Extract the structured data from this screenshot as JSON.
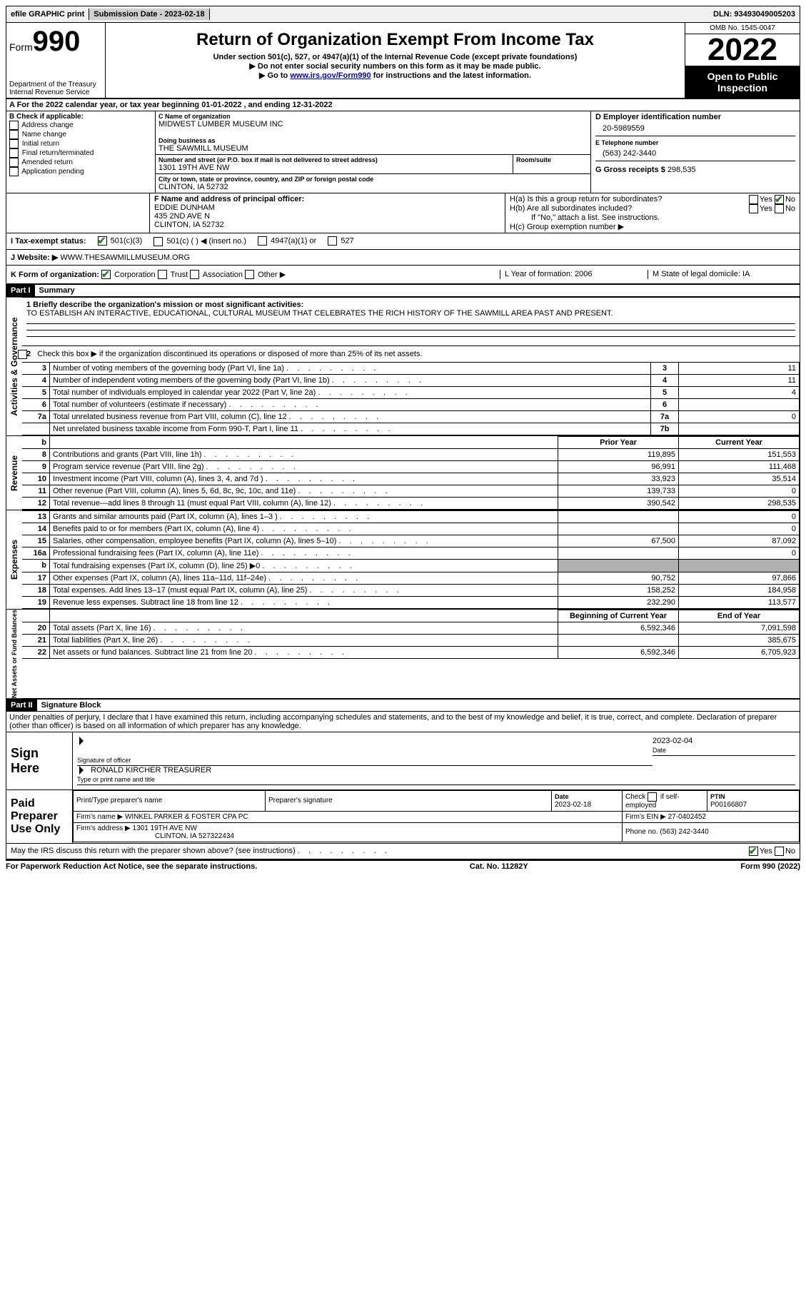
{
  "topbar": {
    "efile": "efile GRAPHIC print",
    "submission_label": "Submission Date - 2023-02-18",
    "dln_label": "DLN: 93493049005203"
  },
  "header": {
    "form_prefix": "Form",
    "form_number": "990",
    "dept": "Department of the Treasury\nInternal Revenue Service",
    "title": "Return of Organization Exempt From Income Tax",
    "subtitle": "Under section 501(c), 527, or 4947(a)(1) of the Internal Revenue Code (except private foundations)",
    "note1": "Do not enter social security numbers on this form as it may be made public.",
    "note2_prefix": "Go to ",
    "note2_link": "www.irs.gov/Form990",
    "note2_suffix": " for instructions and the latest information.",
    "omb": "OMB No. 1545-0047",
    "year": "2022",
    "open": "Open to Public Inspection"
  },
  "lineA": "A For the 2022 calendar year, or tax year beginning 01-01-2022    , and ending 12-31-2022",
  "colB": {
    "header": "B Check if applicable:",
    "items": [
      "Address change",
      "Name change",
      "Initial return",
      "Final return/terminated",
      "Amended return",
      "Application pending"
    ]
  },
  "colC": {
    "name_label": "C Name of organization",
    "name": "MIDWEST LUMBER MUSEUM INC",
    "dba_label": "Doing business as",
    "dba": "THE SAWMILL MUSEUM",
    "addr_label": "Number and street (or P.O. box if mail is not delivered to street address)",
    "room_label": "Room/suite",
    "addr": "1301 19TH AVE NW",
    "city_label": "City or town, state or province, country, and ZIP or foreign postal code",
    "city": "CLINTON, IA  52732"
  },
  "colD": {
    "ein_label": "D Employer identification number",
    "ein": "20-5989559",
    "tel_label": "E Telephone number",
    "tel": "(563) 242-3440",
    "gross_label": "G Gross receipts $",
    "gross": "298,535"
  },
  "rowF": {
    "label": "F  Name and address of principal officer:",
    "name": "EDDIE DUNHAM",
    "addr1": "435 2ND AVE N",
    "addr2": "CLINTON, IA  52732"
  },
  "rowH": {
    "ha": "H(a)  Is this a group return for subordinates?",
    "hb": "H(b)  Are all subordinates included?",
    "hb_note": "If \"No,\" attach a list. See instructions.",
    "hc": "H(c)  Group exemption number ▶",
    "yes": "Yes",
    "no": "No"
  },
  "rowI": {
    "label": "I    Tax-exempt status:",
    "o1": "501(c)(3)",
    "o2": "501(c) (  ) ◀ (insert no.)",
    "o3": "4947(a)(1) or",
    "o4": "527"
  },
  "rowJ": {
    "label": "J   Website: ▶",
    "val": "WWW.THESAWMILLMUSEUM.ORG"
  },
  "rowK": {
    "label": "K Form of organization:",
    "o1": "Corporation",
    "o2": "Trust",
    "o3": "Association",
    "o4": "Other ▶",
    "L": "L Year of formation: 2006",
    "M": "M State of legal domicile: IA"
  },
  "part1": {
    "label": "Part I",
    "title": "Summary"
  },
  "mission": {
    "q": "1    Briefly describe the organization's mission or most significant activities:",
    "text": "TO ESTABLISH AN INTERACTIVE, EDUCATIONAL, CULTURAL MUSEUM THAT CELEBRATES THE RICH HISTORY OF THE SAWMILL AREA PAST AND PRESENT."
  },
  "line2": "Check this box ▶         if the organization discontinued its operations or disposed of more than 25% of its net assets.",
  "gov_rows": [
    {
      "n": "3",
      "d": "Number of voting members of the governing body (Part VI, line 1a)",
      "box": "3",
      "v": "11"
    },
    {
      "n": "4",
      "d": "Number of independent voting members of the governing body (Part VI, line 1b)",
      "box": "4",
      "v": "11"
    },
    {
      "n": "5",
      "d": "Total number of individuals employed in calendar year 2022 (Part V, line 2a)",
      "box": "5",
      "v": "4"
    },
    {
      "n": "6",
      "d": "Total number of volunteers (estimate if necessary)",
      "box": "6",
      "v": ""
    },
    {
      "n": "7a",
      "d": "Total unrelated business revenue from Part VIII, column (C), line 12",
      "box": "7a",
      "v": "0"
    },
    {
      "n": "",
      "d": "Net unrelated business taxable income from Form 990-T, Part I, line 11",
      "box": "7b",
      "v": ""
    }
  ],
  "rev_header": {
    "prior": "Prior Year",
    "current": "Current Year"
  },
  "rev_rows": [
    {
      "n": "8",
      "d": "Contributions and grants (Part VIII, line 1h)",
      "p": "119,895",
      "c": "151,553"
    },
    {
      "n": "9",
      "d": "Program service revenue (Part VIII, line 2g)",
      "p": "96,991",
      "c": "111,468"
    },
    {
      "n": "10",
      "d": "Investment income (Part VIII, column (A), lines 3, 4, and 7d )",
      "p": "33,923",
      "c": "35,514"
    },
    {
      "n": "11",
      "d": "Other revenue (Part VIII, column (A), lines 5, 6d, 8c, 9c, 10c, and 11e)",
      "p": "139,733",
      "c": "0"
    },
    {
      "n": "12",
      "d": "Total revenue—add lines 8 through 11 (must equal Part VIII, column (A), line 12)",
      "p": "390,542",
      "c": "298,535"
    }
  ],
  "exp_rows": [
    {
      "n": "13",
      "d": "Grants and similar amounts paid (Part IX, column (A), lines 1–3 )",
      "p": "",
      "c": "0"
    },
    {
      "n": "14",
      "d": "Benefits paid to or for members (Part IX, column (A), line 4)",
      "p": "",
      "c": "0"
    },
    {
      "n": "15",
      "d": "Salaries, other compensation, employee benefits (Part IX, column (A), lines 5–10)",
      "p": "67,500",
      "c": "87,092"
    },
    {
      "n": "16a",
      "d": "Professional fundraising fees (Part IX, column (A), line 11e)",
      "p": "",
      "c": "0"
    },
    {
      "n": "b",
      "d": "Total fundraising expenses (Part IX, column (D), line 25) ▶0",
      "p": "shade",
      "c": "shade"
    },
    {
      "n": "17",
      "d": "Other expenses (Part IX, column (A), lines 11a–11d, 11f–24e)",
      "p": "90,752",
      "c": "97,866"
    },
    {
      "n": "18",
      "d": "Total expenses. Add lines 13–17 (must equal Part IX, column (A), line 25)",
      "p": "158,252",
      "c": "184,958"
    },
    {
      "n": "19",
      "d": "Revenue less expenses. Subtract line 18 from line 12",
      "p": "232,290",
      "c": "113,577"
    }
  ],
  "net_header": {
    "begin": "Beginning of Current Year",
    "end": "End of Year"
  },
  "net_rows": [
    {
      "n": "20",
      "d": "Total assets (Part X, line 16)",
      "p": "6,592,346",
      "c": "7,091,598"
    },
    {
      "n": "21",
      "d": "Total liabilities (Part X, line 26)",
      "p": "",
      "c": "385,675"
    },
    {
      "n": "22",
      "d": "Net assets or fund balances. Subtract line 21 from line 20",
      "p": "6,592,346",
      "c": "6,705,923"
    }
  ],
  "sections": {
    "gov": "Activities & Governance",
    "rev": "Revenue",
    "exp": "Expenses",
    "net": "Net Assets or Fund Balances"
  },
  "part2": {
    "label": "Part II",
    "title": "Signature Block",
    "decl": "Under penalties of perjury, I declare that I have examined this return, including accompanying schedules and statements, and to the best of my knowledge and belief, it is true, correct, and complete. Declaration of preparer (other than officer) is based on all information of which preparer has any knowledge."
  },
  "sign": {
    "label": "Sign Here",
    "sig_of_officer": "Signature of officer",
    "date": "2023-02-04",
    "date_label": "Date",
    "name": "RONALD KIRCHER  TREASURER",
    "name_label": "Type or print name and title"
  },
  "paid": {
    "label": "Paid Preparer Use Only",
    "h1": "Print/Type preparer's name",
    "h2": "Preparer's signature",
    "h3_label": "Date",
    "h3": "2023-02-18",
    "h4_label": "Check",
    "h4_suffix": "if self-employed",
    "h5_label": "PTIN",
    "h5": "P00166807",
    "firm_name_label": "Firm's name     ▶",
    "firm_name": "WINKEL PARKER & FOSTER CPA PC",
    "firm_ein_label": "Firm's EIN ▶",
    "firm_ein": "27-0402452",
    "firm_addr_label": "Firm's address ▶",
    "firm_addr1": "1301 19TH AVE NW",
    "firm_addr2": "CLINTON, IA  527322434",
    "phone_label": "Phone no.",
    "phone": "(563) 242-3440"
  },
  "may_irs": {
    "q": "May the IRS discuss this return with the preparer shown above? (see instructions)",
    "yes": "Yes",
    "no": "No"
  },
  "footer": {
    "left": "For Paperwork Reduction Act Notice, see the separate instructions.",
    "mid": "Cat. No. 11282Y",
    "right": "Form 990 (2022)"
  }
}
